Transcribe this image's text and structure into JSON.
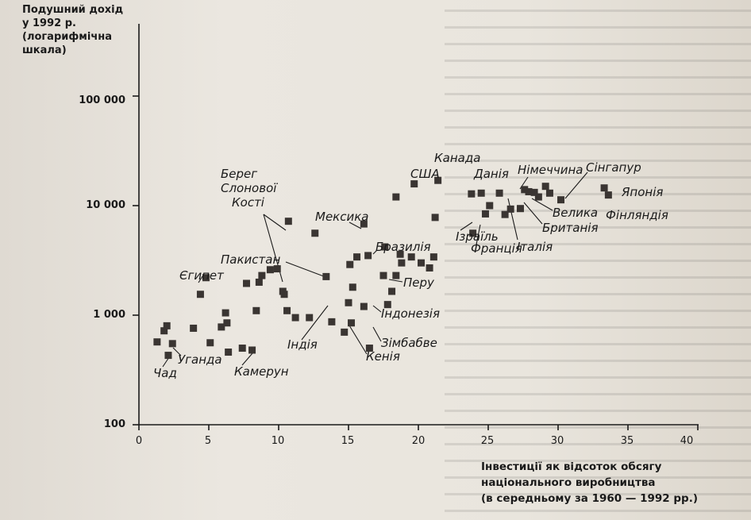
{
  "chart_data": {
    "type": "scatter",
    "ylabel_lines": [
      "Подушний дохід",
      "у 1992 р.",
      "(логарифмічна",
      "шкала)"
    ],
    "xlabel_lines": [
      "Інвестиції як відсоток обсягу",
      "національного виробництва",
      "(в середньому за 1960 — 1992 рр.)"
    ],
    "x_ticks": [
      "0",
      "5",
      "10",
      "15",
      "20",
      "25",
      "30",
      "35",
      "40"
    ],
    "y_ticks": [
      "100",
      "1 000",
      "10 000",
      "100 000"
    ],
    "xlim": [
      0,
      42
    ],
    "ylim": [
      100,
      1000000
    ],
    "y_scale": "log",
    "points": [
      [
        1.3,
        570
      ],
      [
        1.8,
        720
      ],
      [
        2.1,
        430
      ],
      [
        2.4,
        550
      ],
      [
        2.0,
        800
      ],
      [
        3.9,
        760
      ],
      [
        4.4,
        1550
      ],
      [
        4.8,
        2200
      ],
      [
        5.1,
        560
      ],
      [
        5.9,
        780
      ],
      [
        6.2,
        1050
      ],
      [
        6.4,
        460
      ],
      [
        7.4,
        500
      ],
      [
        6.3,
        850
      ],
      [
        7.7,
        1950
      ],
      [
        8.1,
        480
      ],
      [
        8.4,
        1100
      ],
      [
        8.6,
        2000
      ],
      [
        8.8,
        2300
      ],
      [
        9.4,
        2600
      ],
      [
        9.9,
        2650
      ],
      [
        10.3,
        1650
      ],
      [
        10.4,
        1550
      ],
      [
        10.6,
        1100
      ],
      [
        11.2,
        950
      ],
      [
        10.7,
        7200
      ],
      [
        12.2,
        950
      ],
      [
        12.6,
        5600
      ],
      [
        13.4,
        2250
      ],
      [
        13.8,
        870
      ],
      [
        14.7,
        700
      ],
      [
        15.0,
        1300
      ],
      [
        15.2,
        850
      ],
      [
        15.3,
        1800
      ],
      [
        15.1,
        2900
      ],
      [
        15.6,
        3400
      ],
      [
        16.1,
        1200
      ],
      [
        16.5,
        500
      ],
      [
        16.1,
        6800
      ],
      [
        16.4,
        3500
      ],
      [
        17.5,
        2300
      ],
      [
        17.6,
        4200
      ],
      [
        17.8,
        1250
      ],
      [
        18.1,
        1650
      ],
      [
        18.4,
        2300
      ],
      [
        18.7,
        3600
      ],
      [
        18.8,
        3000
      ],
      [
        18.4,
        12000
      ],
      [
        19.5,
        3400
      ],
      [
        19.7,
        15800
      ],
      [
        20.2,
        3000
      ],
      [
        20.8,
        2700
      ],
      [
        21.1,
        3400
      ],
      [
        21.4,
        17000
      ],
      [
        21.2,
        7800
      ],
      [
        23.8,
        12800
      ],
      [
        23.9,
        5600
      ],
      [
        24.5,
        13000
      ],
      [
        24.8,
        8400
      ],
      [
        25.1,
        10000
      ],
      [
        25.8,
        13000
      ],
      [
        26.2,
        8300
      ],
      [
        26.6,
        9300
      ],
      [
        27.3,
        9400
      ],
      [
        27.6,
        14000
      ],
      [
        27.9,
        13400
      ],
      [
        28.3,
        13200
      ],
      [
        28.6,
        12000
      ],
      [
        29.1,
        15000
      ],
      [
        29.4,
        13000
      ],
      [
        30.2,
        11300
      ],
      [
        33.3,
        14500
      ],
      [
        33.6,
        12500
      ]
    ],
    "annotations": [
      {
        "label": "Чад",
        "x": 1.6,
        "y": 420
      },
      {
        "label": "Уганда",
        "x": 2.4,
        "y": 560
      },
      {
        "label": "Єгипет",
        "x": 4.5,
        "y": 1750
      },
      {
        "label": "Камерун",
        "x": 8.2,
        "y": 1000
      },
      {
        "label": "Берег",
        "x": 11.2,
        "y": 1350
      },
      {
        "label": "Слонової",
        "x": 11.2,
        "y": 1350
      },
      {
        "label": "Кості",
        "x": 11.2,
        "y": 1350
      },
      {
        "label": "Пакистан",
        "x": 13.7,
        "y": 1800
      },
      {
        "label": "Індія",
        "x": 13.8,
        "y": 800
      },
      {
        "label": "Мексика",
        "x": 16.0,
        "y": 6800
      },
      {
        "label": "Бразилія",
        "x": 17.6,
        "y": 4200
      },
      {
        "label": "Перу",
        "x": 17.8,
        "y": 1650
      },
      {
        "label": "Індонезія",
        "x": 16.0,
        "y": 1050
      },
      {
        "label": "Зімбабве",
        "x": 16.2,
        "y": 650
      },
      {
        "label": "Кенія",
        "x": 15.0,
        "y": 650
      },
      {
        "label": "США",
        "x": 20.5,
        "y": 15800
      },
      {
        "label": "Канада",
        "x": 23.9,
        "y": 12800
      },
      {
        "label": "Данія",
        "x": 25.4,
        "y": 13000
      },
      {
        "label": "Ізраїль",
        "x": 24.8,
        "y": 8400
      },
      {
        "label": "Франція",
        "x": 25.9,
        "y": 8300
      },
      {
        "label": "Італія",
        "x": 28.0,
        "y": 13400
      },
      {
        "label": "Британія",
        "x": 28.6,
        "y": 12000
      },
      {
        "label": "Велика",
        "x": 28.8,
        "y": 12000
      },
      {
        "label": "Німеччина",
        "x": 29.0,
        "y": 13200
      },
      {
        "label": "Сінгапур",
        "x": 30.3,
        "y": 15000
      },
      {
        "label": "Японія",
        "x": 34.3,
        "y": 14500
      },
      {
        "label": "Фінляндія",
        "x": 33.8,
        "y": 12500
      }
    ]
  },
  "colors": {
    "marker": "#3a3532",
    "axis": "#1a1a1a",
    "text": "#1a1a1a"
  }
}
